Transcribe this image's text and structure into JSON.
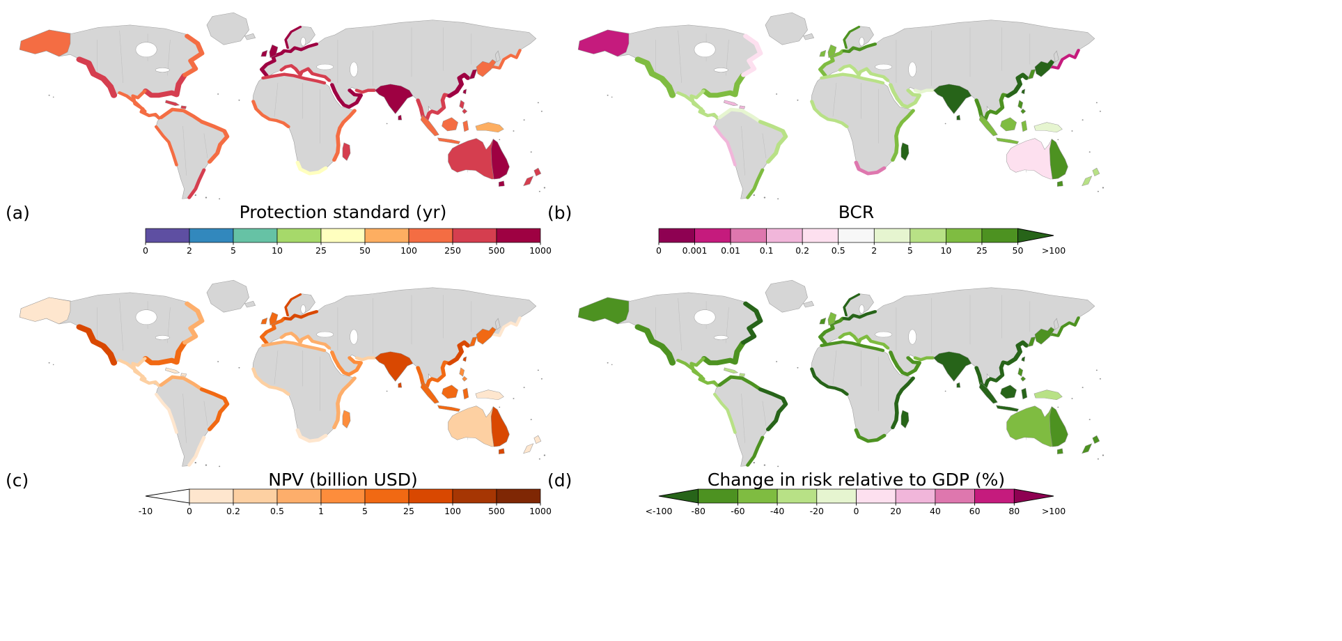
{
  "figure": {
    "background": "#ffffff",
    "map": {
      "land": "#d6d6d6",
      "border": "#9f9f9f",
      "ocean": "#ffffff"
    },
    "panels": [
      {
        "id": "a",
        "label": "(a)",
        "title": "Protection standard (yr)",
        "colorbar": {
          "colors": [
            "#5e4fa2",
            "#3288bd",
            "#66c2a5",
            "#a6d96a",
            "#ffffbf",
            "#fdae61",
            "#f46d43",
            "#d53e4f",
            "#9e0142"
          ],
          "ticks": [
            "0",
            "2",
            "5",
            "10",
            "25",
            "50",
            "100",
            "250",
            "500",
            "1000"
          ],
          "left_arrow": false,
          "right_arrow": false
        },
        "regions": {
          "alaska": "#f46d43",
          "us_west": "#d53e4f",
          "us_gulf_east": "#d53e4f",
          "canada_east": "#f46d43",
          "mexico": "#f46d43",
          "sa_north": "#f46d43",
          "brazil_east": "#f46d43",
          "sa_south": "#d53e4f",
          "sa_west": "#f46d43",
          "europe_west": "#9e0142",
          "europe_north": "#9e0142",
          "mediterranean": "#d53e4f",
          "north_africa": "#d53e4f",
          "west_africa": "#f46d43",
          "south_africa": "#ffffbf",
          "east_africa": "#f46d43",
          "arabia": "#9e0142",
          "iran_pak": "#d53e4f",
          "india": "#9e0142",
          "seasia": "#d53e4f",
          "china_coast": "#9e0142",
          "korea": "#9e0142",
          "japan": "#f46d43",
          "russia_far_east": "#f46d43",
          "australia": "#d53e4f",
          "australia_east": "#9e0142",
          "indonesia": "#f46d43",
          "philippines": "#d53e4f",
          "new_guinea": "#fdae61",
          "nz": "#d53e4f",
          "uk": "#9e0142",
          "caribbean": "#d53e4f",
          "madagascar": "#d53e4f"
        }
      },
      {
        "id": "b",
        "label": "(b)",
        "title": "BCR",
        "colorbar": {
          "colors": [
            "#8e0152",
            "#c51b7d",
            "#de77ae",
            "#f1b6da",
            "#fde0ef",
            "#f7f7f7",
            "#e6f5d0",
            "#b8e186",
            "#7fbc41",
            "#4d9221",
            "#276419"
          ],
          "ticks": [
            "0",
            "0.001",
            "0.01",
            "0.1",
            "0.2",
            "0.5",
            "2",
            "5",
            "10",
            "25",
            "50",
            ">100"
          ],
          "left_arrow": false,
          "right_arrow": true
        },
        "regions": {
          "alaska": "#c51b7d",
          "us_west": "#7fbc41",
          "us_gulf_east": "#7fbc41",
          "canada_east": "#fde0ef",
          "mexico": "#b8e186",
          "sa_north": "#e6f5d0",
          "brazil_east": "#b8e186",
          "sa_south": "#7fbc41",
          "sa_west": "#f1b6da",
          "europe_west": "#7fbc41",
          "europe_north": "#4d9221",
          "mediterranean": "#b8e186",
          "north_africa": "#b8e186",
          "west_africa": "#b8e186",
          "south_africa": "#de77ae",
          "east_africa": "#7fbc41",
          "arabia": "#b8e186",
          "iran_pak": "#e6f5d0",
          "india": "#276419",
          "seasia": "#4d9221",
          "china_coast": "#276419",
          "korea": "#4d9221",
          "japan": "#276419",
          "russia_far_east": "#c51b7d",
          "australia": "#fde0ef",
          "australia_east": "#4d9221",
          "indonesia": "#7fbc41",
          "philippines": "#4d9221",
          "new_guinea": "#e6f5d0",
          "nz": "#b8e186",
          "uk": "#7fbc41",
          "caribbean": "#f1b6da",
          "madagascar": "#276419"
        }
      },
      {
        "id": "c",
        "label": "(c)",
        "title": "NPV (billion USD)",
        "colorbar": {
          "colors": [
            "#ffffff",
            "#fee6ce",
            "#fdd0a2",
            "#fdae6b",
            "#fd8d3c",
            "#f16913",
            "#d94801",
            "#a63603",
            "#7f2704"
          ],
          "ticks": [
            "-10",
            "0",
            "0.2",
            "0.5",
            "1",
            "5",
            "25",
            "100",
            "500",
            "1000"
          ],
          "left_arrow": true,
          "right_arrow": false
        },
        "regions": {
          "alaska": "#fee6ce",
          "us_west": "#d94801",
          "us_gulf_east": "#f16913",
          "canada_east": "#fdae6b",
          "mexico": "#fdd0a2",
          "sa_north": "#fdae6b",
          "brazil_east": "#f16913",
          "sa_south": "#fee6ce",
          "sa_west": "#fee6ce",
          "europe_west": "#f16913",
          "europe_north": "#d94801",
          "mediterranean": "#fdae6b",
          "north_africa": "#fdae6b",
          "west_africa": "#fdd0a2",
          "south_africa": "#fee6ce",
          "east_africa": "#fdae6b",
          "arabia": "#fd8d3c",
          "iran_pak": "#fdd0a2",
          "india": "#d94801",
          "seasia": "#f16913",
          "china_coast": "#d94801",
          "korea": "#f16913",
          "japan": "#f16913",
          "russia_far_east": "#fee6ce",
          "australia": "#fdd0a2",
          "australia_east": "#d94801",
          "indonesia": "#f16913",
          "philippines": "#fd8d3c",
          "new_guinea": "#fee6ce",
          "nz": "#fee6ce",
          "uk": "#f16913",
          "caribbean": "#fee6ce",
          "madagascar": "#fd8d3c"
        }
      },
      {
        "id": "d",
        "label": "(d)",
        "title": "Change in risk relative to GDP (%)",
        "colorbar": {
          "colors": [
            "#276419",
            "#4d9221",
            "#7fbc41",
            "#b8e186",
            "#e6f5d0",
            "#fde0ef",
            "#f1b6da",
            "#de77ae",
            "#c51b7d",
            "#8e0152"
          ],
          "ticks": [
            "<-100",
            "-80",
            "-60",
            "-40",
            "-20",
            "0",
            "20",
            "40",
            "60",
            "80",
            ">100"
          ],
          "left_arrow": true,
          "right_arrow": true
        },
        "regions": {
          "alaska": "#4d9221",
          "us_west": "#4d9221",
          "us_gulf_east": "#4d9221",
          "canada_east": "#276419",
          "mexico": "#7fbc41",
          "sa_north": "#4d9221",
          "brazil_east": "#276419",
          "sa_south": "#4d9221",
          "sa_west": "#b8e186",
          "europe_west": "#4d9221",
          "europe_north": "#276419",
          "mediterranean": "#7fbc41",
          "north_africa": "#4d9221",
          "west_africa": "#276419",
          "south_africa": "#4d9221",
          "east_africa": "#276419",
          "arabia": "#4d9221",
          "iran_pak": "#7fbc41",
          "india": "#276419",
          "seasia": "#276419",
          "china_coast": "#276419",
          "korea": "#4d9221",
          "japan": "#4d9221",
          "russia_far_east": "#4d9221",
          "australia": "#7fbc41",
          "australia_east": "#4d9221",
          "indonesia": "#276419",
          "philippines": "#4d9221",
          "new_guinea": "#b8e186",
          "nz": "#4d9221",
          "uk": "#7fbc41",
          "caribbean": "#b8e186",
          "madagascar": "#276419"
        }
      }
    ]
  },
  "chart_data": [
    {
      "type": "heatmap",
      "subtype": "choropleth-world-map",
      "panel": "(a)",
      "title": "Protection standard (yr)",
      "colorbar_orientation": "horizontal",
      "colorbar_ticks": [
        "0",
        "2",
        "5",
        "10",
        "25",
        "50",
        "100",
        "250",
        "500",
        "1000"
      ],
      "colorbar_colors": [
        "#5e4fa2",
        "#3288bd",
        "#66c2a5",
        "#a6d96a",
        "#ffffbf",
        "#fdae61",
        "#f46d43",
        "#d53e4f",
        "#9e0142"
      ],
      "extends": "none",
      "notes": "Coastal regions worldwide shaded mostly orange to dark red (high protection standards); uncolored land gray"
    },
    {
      "type": "heatmap",
      "subtype": "choropleth-world-map",
      "panel": "(b)",
      "title": "BCR",
      "colorbar_orientation": "horizontal",
      "colorbar_ticks": [
        "0",
        "0.001",
        "0.01",
        "0.1",
        "0.2",
        "0.5",
        "2",
        "5",
        "10",
        "25",
        "50",
        ">100"
      ],
      "colorbar_colors": [
        "#8e0152",
        "#c51b7d",
        "#de77ae",
        "#f1b6da",
        "#fde0ef",
        "#f7f7f7",
        "#e6f5d0",
        "#b8e186",
        "#7fbc41",
        "#4d9221",
        "#276419"
      ],
      "extends": "right",
      "notes": "Benefit-cost ratio; greens (BCR>1) across most coasts, pinks/magentas (BCR<1) in Alaska, Canada, Australia interior, far-east Russia"
    },
    {
      "type": "heatmap",
      "subtype": "choropleth-world-map",
      "panel": "(c)",
      "title": "NPV (billion USD)",
      "colorbar_orientation": "horizontal",
      "colorbar_ticks": [
        "-10",
        "0",
        "0.2",
        "0.5",
        "1",
        "5",
        "25",
        "100",
        "500",
        "1000"
      ],
      "colorbar_colors": [
        "#ffffff",
        "#fee6ce",
        "#fdd0a2",
        "#fdae6b",
        "#fd8d3c",
        "#f16913",
        "#d94801",
        "#a63603",
        "#7f2704"
      ],
      "extends": "left",
      "notes": "Net present value; darkest oranges on US West Coast, NW Europe, India, China coast, SE Australia"
    },
    {
      "type": "heatmap",
      "subtype": "choropleth-world-map",
      "panel": "(d)",
      "title": "Change in risk relative to GDP (%)",
      "colorbar_orientation": "horizontal",
      "colorbar_ticks": [
        "<-100",
        "-80",
        "-60",
        "-40",
        "-20",
        "0",
        "20",
        "40",
        "60",
        "80",
        ">100"
      ],
      "colorbar_colors": [
        "#276419",
        "#4d9221",
        "#7fbc41",
        "#b8e186",
        "#e6f5d0",
        "#fde0ef",
        "#f1b6da",
        "#de77ae",
        "#c51b7d",
        "#8e0152"
      ],
      "extends": "both",
      "notes": "Nearly all coastal regions dark green (large risk reduction relative to GDP)"
    }
  ]
}
